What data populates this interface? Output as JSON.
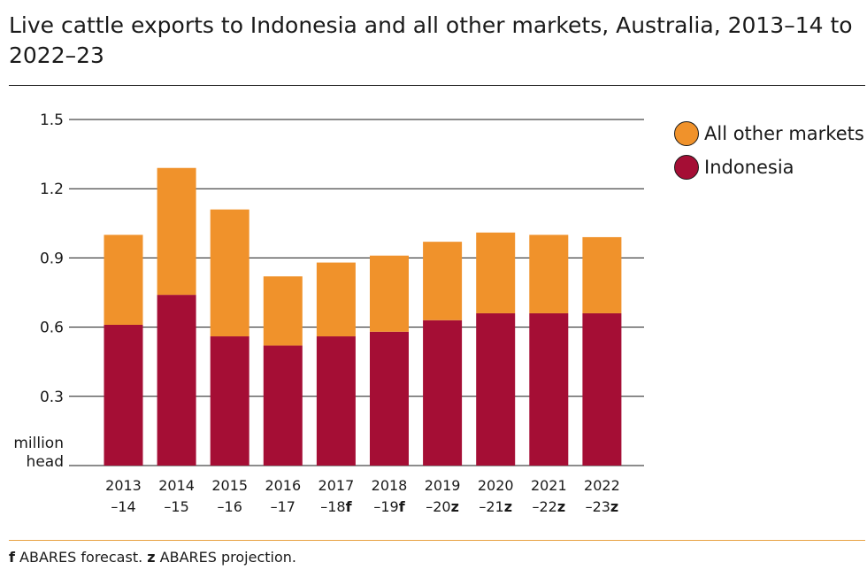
{
  "title": "Live cattle exports to Indonesia and all other markets, Australia, 2013–14 to 2022–23",
  "footnote": {
    "f_marker": "f",
    "f_text": " ABARES forecast. ",
    "z_marker": "z",
    "z_text": " ABARES projection."
  },
  "legend": [
    {
      "label": "All other markets",
      "color": "#f0922b"
    },
    {
      "label": "Indonesia",
      "color": "#a50e35"
    }
  ],
  "chart_data": {
    "type": "bar",
    "stacked": true,
    "title": "Live cattle exports to Indonesia and all other markets, Australia, 2013–14 to 2022–23",
    "xlabel": "",
    "ylabel": "million head",
    "ylim": [
      0,
      1.5
    ],
    "yticks": [
      "0.3",
      "0.6",
      "0.9",
      "1.2",
      "1.5"
    ],
    "grid": true,
    "legend_position": "top-right",
    "categories": [
      {
        "line1": "2013",
        "line2": "–14",
        "marker": ""
      },
      {
        "line1": "2014",
        "line2": "–15",
        "marker": ""
      },
      {
        "line1": "2015",
        "line2": "–16",
        "marker": ""
      },
      {
        "line1": "2016",
        "line2": "–17",
        "marker": ""
      },
      {
        "line1": "2017",
        "line2": "–18",
        "marker": "f"
      },
      {
        "line1": "2018",
        "line2": "–19",
        "marker": "f"
      },
      {
        "line1": "2019",
        "line2": "–20",
        "marker": "z"
      },
      {
        "line1": "2020",
        "line2": "–21",
        "marker": "z"
      },
      {
        "line1": "2021",
        "line2": "–22",
        "marker": "z"
      },
      {
        "line1": "2022",
        "line2": "–23",
        "marker": "z"
      }
    ],
    "series": [
      {
        "name": "Indonesia",
        "color": "#a50e35",
        "values": [
          0.61,
          0.74,
          0.56,
          0.52,
          0.56,
          0.58,
          0.63,
          0.66,
          0.66,
          0.66
        ]
      },
      {
        "name": "All other markets",
        "color": "#f0922b",
        "values": [
          0.39,
          0.55,
          0.55,
          0.3,
          0.32,
          0.33,
          0.34,
          0.35,
          0.34,
          0.33
        ]
      }
    ]
  }
}
